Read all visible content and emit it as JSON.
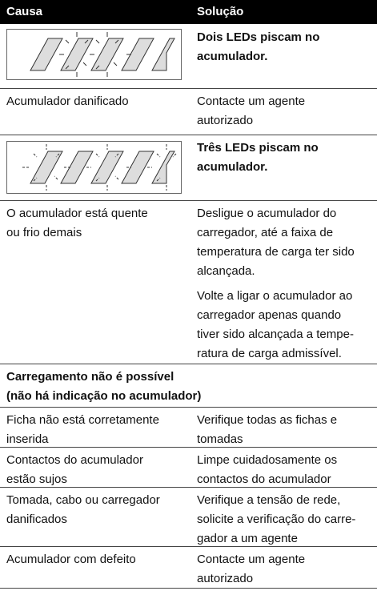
{
  "header": {
    "cause": "Causa",
    "solution": "Solução"
  },
  "groups": [
    {
      "rows": [
        {
          "solution": [
            [
              "Dois LEDs piscam no",
              "acumulador."
            ]
          ]
        },
        {
          "cause": [
            "Acumulador danificado"
          ],
          "solution": [
            [
              "Contacte um agente",
              "autorizado"
            ]
          ]
        },
        {
          "solution": [
            [
              "Três LEDs piscam no",
              "acumulador."
            ]
          ]
        },
        {
          "cause": [
            "O acumulador está quente",
            "ou frio demais"
          ],
          "solution": [
            [
              "Desligue o acumulador do",
              "carregador, até a faixa de",
              "temperatura de carga ter sido",
              "alcançada."
            ],
            [
              "Volte a ligar o acumulador ao",
              "carregador apenas quando",
              "tiver sido alcançada a tempe-",
              "ratura de carga admissível."
            ]
          ]
        }
      ]
    },
    {
      "heading": [
        "Carregamento não é possível",
        "(não há indicação no acumulador)"
      ],
      "rows": [
        {
          "cause": [
            "Ficha não está corretamente",
            "inserida"
          ],
          "solution": [
            [
              "Verifique todas as fichas e",
              "tomadas"
            ]
          ]
        },
        {
          "cause": [
            "Contactos do acumulador",
            "estão sujos"
          ],
          "solution": [
            [
              "Limpe cuidadosamente os",
              "contactos do acumulador"
            ]
          ]
        },
        {
          "cause": [
            "Tomada, cabo ou carregador",
            "danificados"
          ],
          "solution": [
            [
              "Verifique a tensão de rede,",
              "solicite a verificação do carre-",
              "gador a um agente"
            ]
          ]
        },
        {
          "cause": [
            "Acumulador com defeito"
          ],
          "solution": [
            [
              "Contacte um agente",
              "autorizado"
            ]
          ]
        }
      ]
    }
  ]
}
